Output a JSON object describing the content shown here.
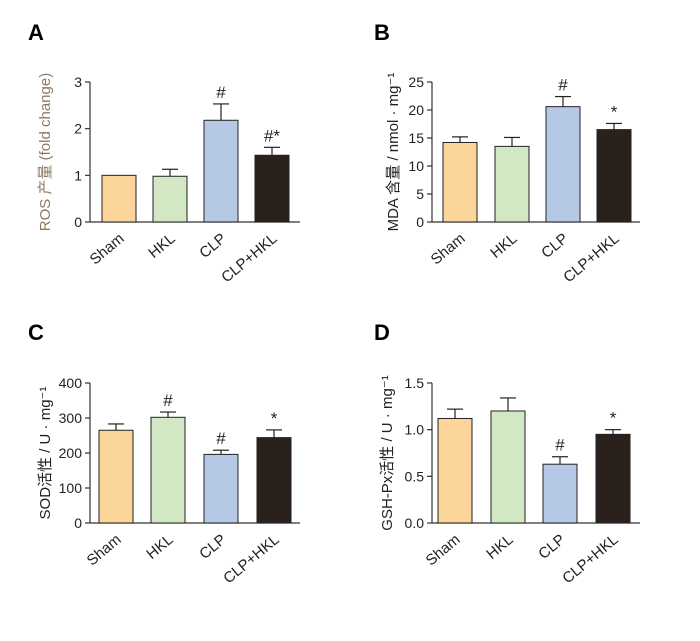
{
  "colors": {
    "sham": "#fbd59a",
    "hkl": "#d2e8c4",
    "clp": "#b5c8e6",
    "clp_hkl": "#2b211c",
    "axis": "#333333",
    "ros_label": "#8c7b62"
  },
  "chart_data": [
    {
      "type": "bar",
      "panel": "A",
      "title": "",
      "xlabel": "",
      "ylabel": "ROS 产量 (fold change)",
      "ylim": [
        0,
        3
      ],
      "yticks": [
        "0",
        "1",
        "2",
        "3"
      ],
      "categories": [
        "Sham",
        "HKL",
        "CLP",
        "CLP+HKL"
      ],
      "values": [
        1.0,
        0.98,
        2.18,
        1.43
      ],
      "errors": [
        0.0,
        0.15,
        0.35,
        0.17
      ],
      "annotations": [
        "",
        "",
        "#",
        "#*"
      ]
    },
    {
      "type": "bar",
      "panel": "B",
      "title": "",
      "xlabel": "",
      "ylabel": "MDA 含量 / nmol · mg⁻¹",
      "ylim": [
        0,
        25
      ],
      "yticks": [
        "0",
        "5",
        "10",
        "15",
        "20",
        "25"
      ],
      "categories": [
        "Sham",
        "HKL",
        "CLP",
        "CLP+HKL"
      ],
      "values": [
        14.2,
        13.5,
        20.6,
        16.5
      ],
      "errors": [
        1.0,
        1.6,
        1.8,
        1.1
      ],
      "annotations": [
        "",
        "",
        "#",
        "*"
      ]
    },
    {
      "type": "bar",
      "panel": "C",
      "title": "",
      "xlabel": "",
      "ylabel": "SOD活性 / U · mg⁻¹",
      "ylim": [
        0,
        400
      ],
      "yticks": [
        "0",
        "100",
        "200",
        "300",
        "400"
      ],
      "categories": [
        "Sham",
        "HKL",
        "CLP",
        "CLP+HKL"
      ],
      "values": [
        265,
        302,
        196,
        244
      ],
      "errors": [
        18,
        15,
        12,
        22
      ],
      "annotations": [
        "",
        "#",
        "#",
        "*"
      ]
    },
    {
      "type": "bar",
      "panel": "D",
      "title": "",
      "xlabel": "",
      "ylabel": "GSH-Px活性 / U · mg⁻¹",
      "ylim": [
        0,
        1.5
      ],
      "yticks": [
        "0.0",
        "0.5",
        "1.0",
        "1.5"
      ],
      "categories": [
        "Sham",
        "HKL",
        "CLP",
        "CLP+HKL"
      ],
      "values": [
        1.12,
        1.2,
        0.63,
        0.95
      ],
      "errors": [
        0.1,
        0.14,
        0.08,
        0.05
      ],
      "annotations": [
        "",
        "",
        "#",
        "*"
      ]
    }
  ]
}
